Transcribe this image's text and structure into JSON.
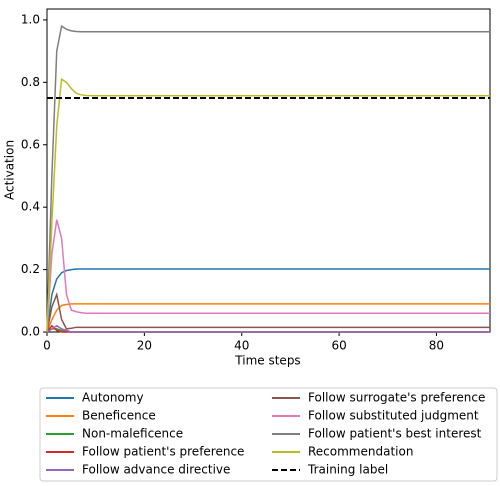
{
  "chart_data": {
    "type": "line",
    "xlabel": "Time steps",
    "ylabel": "Activation",
    "x": [
      0,
      1,
      2,
      3,
      4,
      5,
      6,
      7,
      8,
      10,
      12,
      15,
      20,
      91
    ],
    "xlim": [
      0,
      91
    ],
    "xticks": [
      0,
      20,
      40,
      60,
      80
    ],
    "ylim": [
      0,
      1.035
    ],
    "yticks": [
      {
        "value": 0,
        "label": "0.0"
      },
      {
        "value": 0.2,
        "label": "0.2"
      },
      {
        "value": 0.4,
        "label": "0.4"
      },
      {
        "value": 0.6,
        "label": "0.6"
      },
      {
        "value": 0.8,
        "label": "0.8"
      },
      {
        "value": 1,
        "label": "1.0"
      }
    ],
    "series": [
      {
        "name": "Autonomy",
        "color": "#1f77b4",
        "values": [
          0,
          0.12,
          0.17,
          0.19,
          0.197,
          0.2,
          0.202,
          0.202,
          0.202,
          0.202,
          0.202,
          0.202,
          0.202,
          0.202
        ]
      },
      {
        "name": "Beneficence",
        "color": "#ff7f0e",
        "values": [
          0,
          0.04,
          0.07,
          0.085,
          0.088,
          0.09,
          0.09,
          0.09,
          0.09,
          0.09,
          0.09,
          0.09,
          0.09,
          0.09
        ]
      },
      {
        "name": "Non-maleficence",
        "color": "#2ca02c",
        "values": [
          0,
          0.01,
          0.01,
          0.005,
          0.002,
          0,
          0,
          0,
          0,
          0,
          0,
          0,
          0,
          0
        ]
      },
      {
        "name": "Follow patient's preference",
        "color": "#d62728",
        "values": [
          0,
          0.02,
          0.005,
          0,
          0,
          0,
          0,
          0,
          0,
          0,
          0,
          0,
          0,
          0
        ]
      },
      {
        "name": "Follow advance directive",
        "color": "#9467bd",
        "values": [
          0,
          0.01,
          0.02,
          0.01,
          0.005,
          0,
          0,
          0,
          0,
          0,
          0,
          0,
          0,
          0
        ]
      },
      {
        "name": "Follow surrogate's preference",
        "color": "#8c564b",
        "values": [
          0,
          0.08,
          0.12,
          0.04,
          0.01,
          0.012,
          0.015,
          0.015,
          0.015,
          0.015,
          0.015,
          0.015,
          0.015,
          0.015
        ]
      },
      {
        "name": "Follow substituted judgment",
        "color": "#e377c2",
        "values": [
          0,
          0.25,
          0.36,
          0.3,
          0.12,
          0.07,
          0.065,
          0.062,
          0.06,
          0.06,
          0.06,
          0.06,
          0.06,
          0.06
        ]
      },
      {
        "name": "Follow patient's best interest",
        "color": "#7f7f7f",
        "values": [
          0,
          0.5,
          0.9,
          0.98,
          0.97,
          0.965,
          0.963,
          0.962,
          0.962,
          0.962,
          0.962,
          0.962,
          0.962,
          0.962
        ]
      },
      {
        "name": "Recommendation",
        "color": "#bcbd22",
        "values": [
          0,
          0.35,
          0.66,
          0.81,
          0.8,
          0.78,
          0.765,
          0.76,
          0.758,
          0.757,
          0.757,
          0.757,
          0.757,
          0.757
        ]
      }
    ],
    "hline": {
      "name": "Training label",
      "value": 0.75,
      "color": "#000000"
    }
  }
}
